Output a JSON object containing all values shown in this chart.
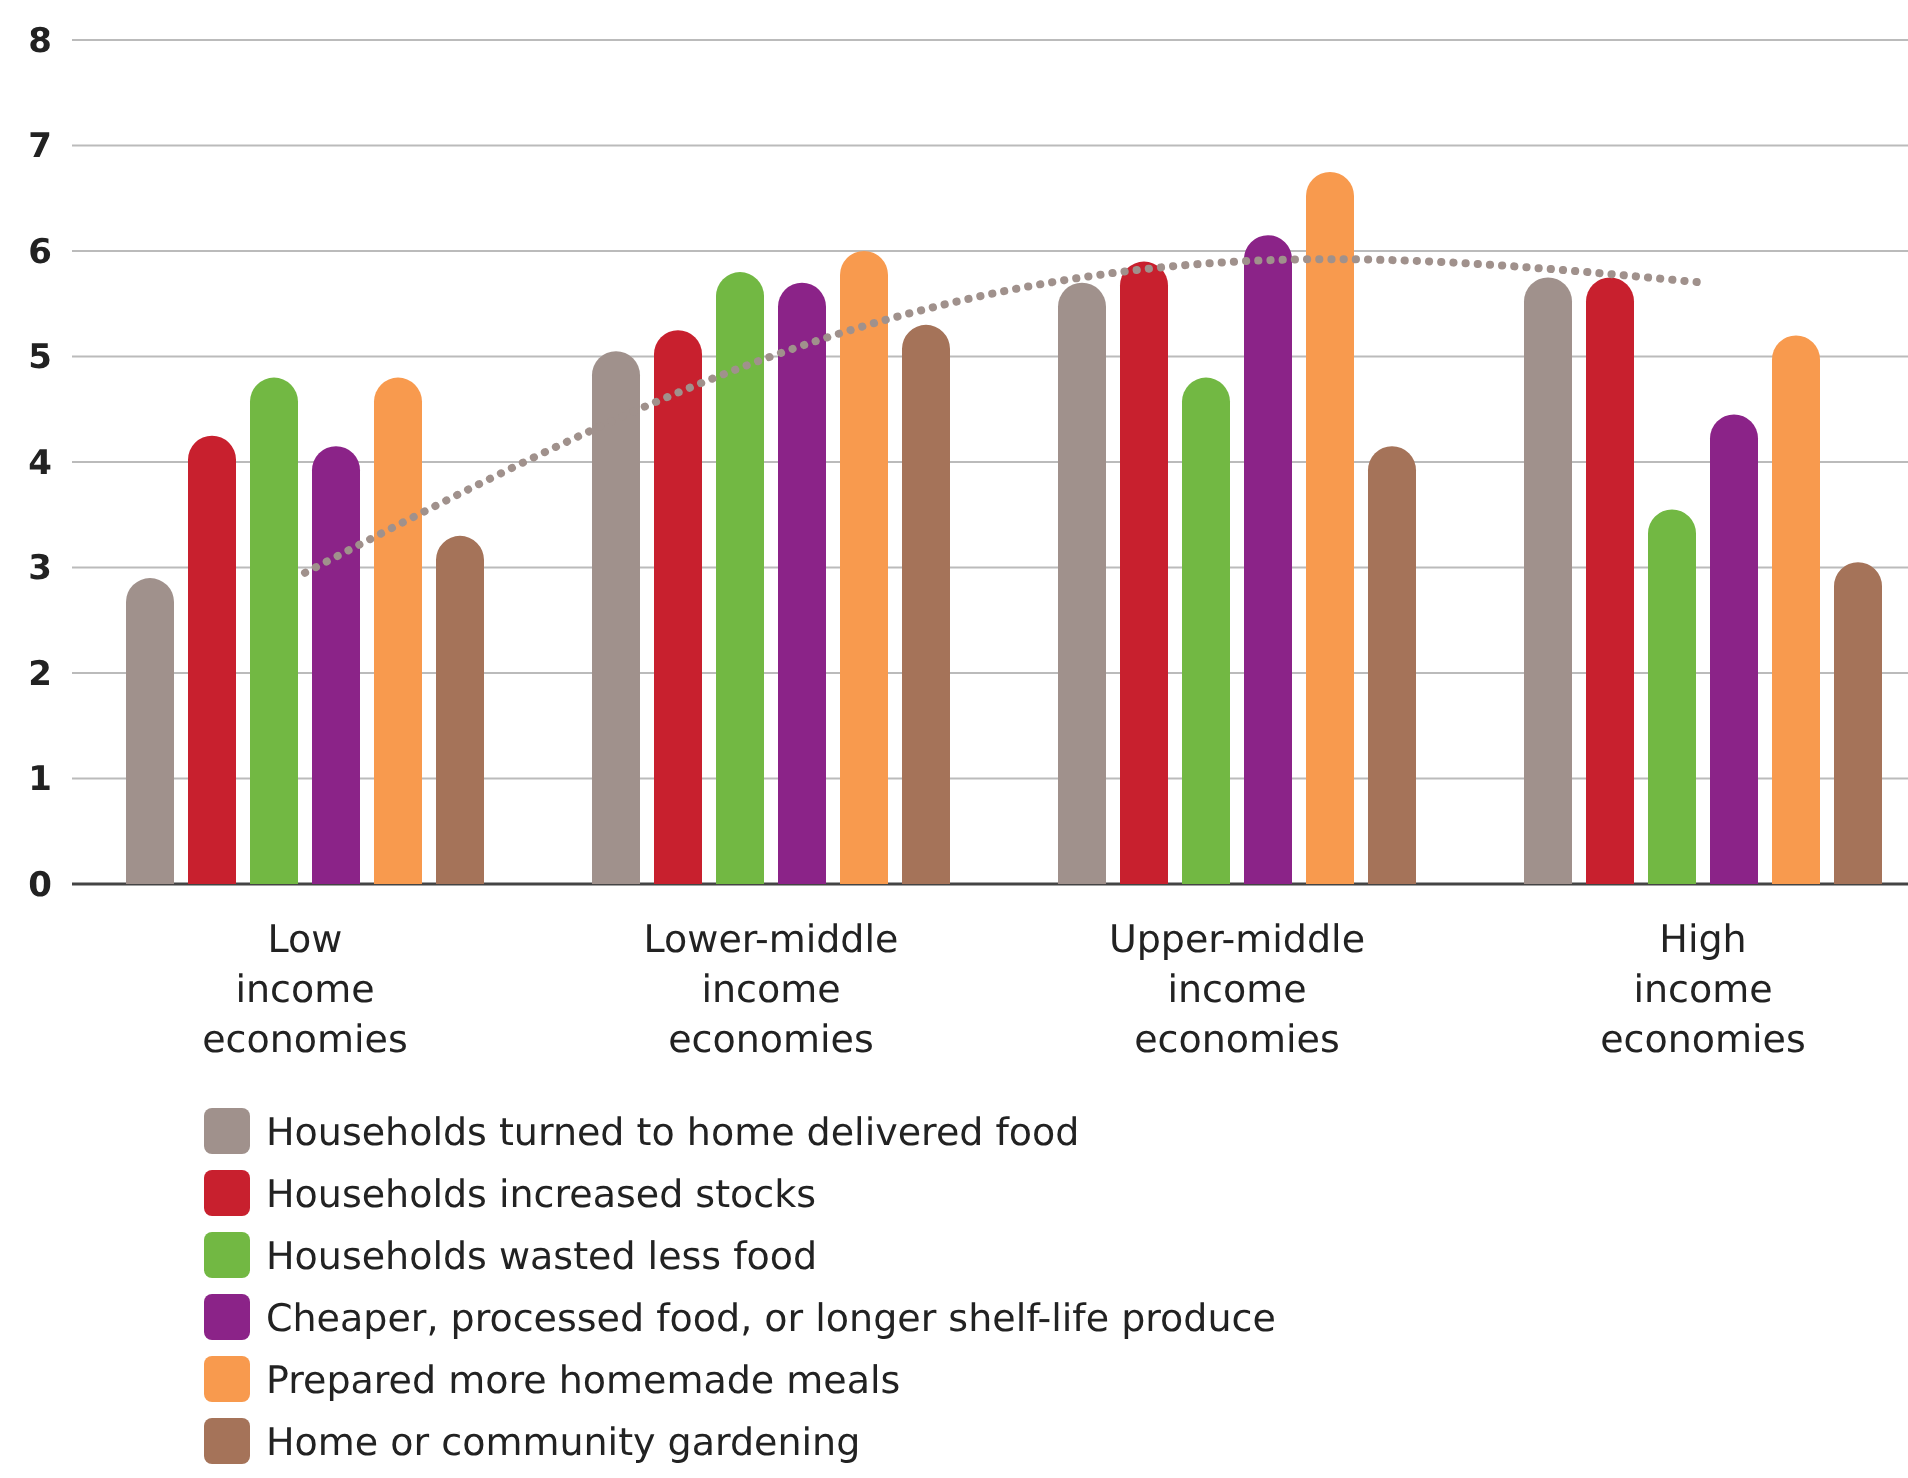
{
  "chart_data": {
    "type": "bar",
    "categories": [
      "Low income economies",
      "Lower-middle income economies",
      "Upper-middle income economies",
      "High income economies"
    ],
    "series": [
      {
        "name": "Households turned to home delivered food",
        "color": "#a0918c",
        "values": [
          2.9,
          5.05,
          5.7,
          5.75
        ]
      },
      {
        "name": "Households increased stocks",
        "color": "#c8202e",
        "values": [
          4.25,
          5.25,
          5.9,
          5.75
        ]
      },
      {
        "name": "Households wasted less food",
        "color": "#72b843",
        "values": [
          4.8,
          5.8,
          4.8,
          3.55
        ]
      },
      {
        "name": "Cheaper, processed food, or longer shelf-life produce",
        "color": "#8b2388",
        "values": [
          4.15,
          5.7,
          6.15,
          4.45
        ]
      },
      {
        "name": "Prepared more homemade meals",
        "color": "#f89a4e",
        "values": [
          4.8,
          6.0,
          6.75,
          5.2
        ]
      },
      {
        "name": "Home or community gardening",
        "color": "#a57359",
        "values": [
          3.3,
          5.3,
          4.15,
          3.05
        ]
      },
      {
        "type": "line",
        "color": "#a0918c",
        "line_style": "dotted",
        "values": [
          2.95,
          5.0,
          5.9,
          5.7
        ]
      }
    ],
    "ylim": [
      0,
      8
    ],
    "yticks": [
      0,
      1,
      2,
      3,
      4,
      5,
      6,
      7,
      8
    ],
    "grid": "y",
    "legend": "bottom"
  }
}
